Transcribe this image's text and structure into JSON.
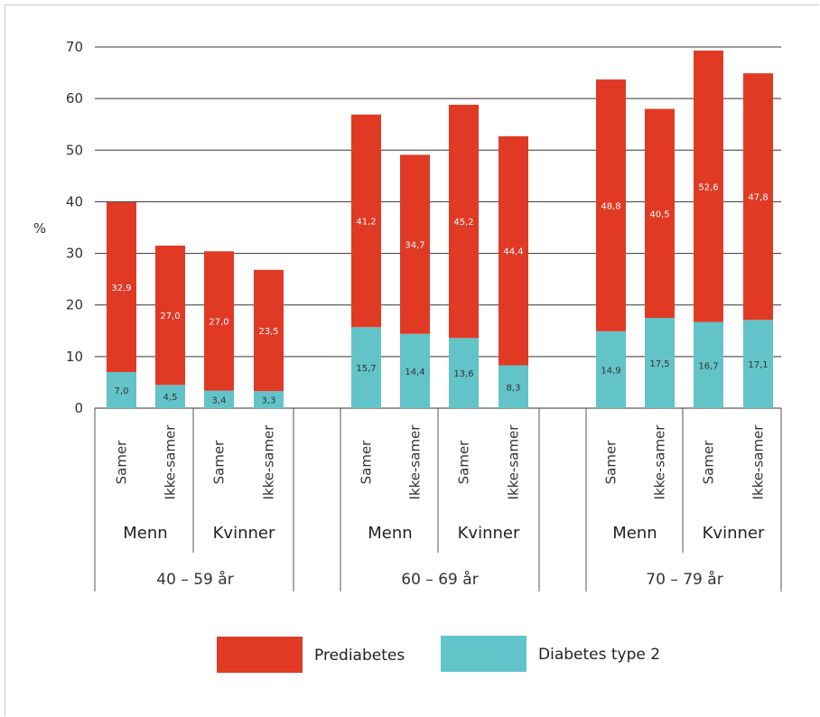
{
  "chart_data": {
    "type": "bar",
    "stacked": true,
    "ylabel": "%",
    "ylim": [
      0,
      70
    ],
    "yticks": [
      "0",
      "10",
      "20",
      "30",
      "40",
      "50",
      "60",
      "70"
    ],
    "grid": true,
    "legend_position": "bottom",
    "age_groups": [
      {
        "label": "40 – 59 år",
        "sexes": [
          {
            "label": "Menn",
            "bars": [
              {
                "category": "Samer",
                "diabetes": 7.0,
                "diabetes_label": "7,0",
                "prediabetes": 32.9,
                "prediabetes_label": "32,9"
              },
              {
                "category": "Ikke-samer",
                "diabetes": 4.5,
                "diabetes_label": "4,5",
                "prediabetes": 27.0,
                "prediabetes_label": "27,0"
              }
            ]
          },
          {
            "label": "Kvinner",
            "bars": [
              {
                "category": "Samer",
                "diabetes": 3.4,
                "diabetes_label": "3,4",
                "prediabetes": 27.0,
                "prediabetes_label": "27,0"
              },
              {
                "category": "Ikke-samer",
                "diabetes": 3.3,
                "diabetes_label": "3,3",
                "prediabetes": 23.5,
                "prediabetes_label": "23,5"
              }
            ]
          }
        ]
      },
      {
        "label": "60 – 69 år",
        "sexes": [
          {
            "label": "Menn",
            "bars": [
              {
                "category": "Samer",
                "diabetes": 15.7,
                "diabetes_label": "15,7",
                "prediabetes": 41.2,
                "prediabetes_label": "41,2"
              },
              {
                "category": "Ikke-samer",
                "diabetes": 14.4,
                "diabetes_label": "14,4",
                "prediabetes": 34.7,
                "prediabetes_label": "34,7"
              }
            ]
          },
          {
            "label": "Kvinner",
            "bars": [
              {
                "category": "Samer",
                "diabetes": 13.6,
                "diabetes_label": "13,6",
                "prediabetes": 45.2,
                "prediabetes_label": "45,2"
              },
              {
                "category": "Ikke-samer",
                "diabetes": 8.3,
                "diabetes_label": "8,3",
                "prediabetes": 44.4,
                "prediabetes_label": "44,4"
              }
            ]
          }
        ]
      },
      {
        "label": "70 – 79 år",
        "sexes": [
          {
            "label": "Menn",
            "bars": [
              {
                "category": "Samer",
                "diabetes": 14.9,
                "diabetes_label": "14,9",
                "prediabetes": 48.8,
                "prediabetes_label": "48,8"
              },
              {
                "category": "Ikke-samer",
                "diabetes": 17.5,
                "diabetes_label": "17,5",
                "prediabetes": 40.5,
                "prediabetes_label": "40,5"
              }
            ]
          },
          {
            "label": "Kvinner",
            "bars": [
              {
                "category": "Samer",
                "diabetes": 16.7,
                "diabetes_label": "16,7",
                "prediabetes": 52.6,
                "prediabetes_label": "52,6"
              },
              {
                "category": "Ikke-samer",
                "diabetes": 17.1,
                "diabetes_label": "17,1",
                "prediabetes": 47.8,
                "prediabetes_label": "47,8"
              }
            ]
          }
        ]
      }
    ],
    "series": [
      {
        "key": "prediabetes",
        "name": "Prediabetes",
        "color": "#e03a25"
      },
      {
        "key": "diabetes",
        "name": "Diabetes type 2",
        "color": "#62c3c8"
      }
    ]
  },
  "colors": {
    "gridline": "#333333",
    "separator": "#555555"
  }
}
